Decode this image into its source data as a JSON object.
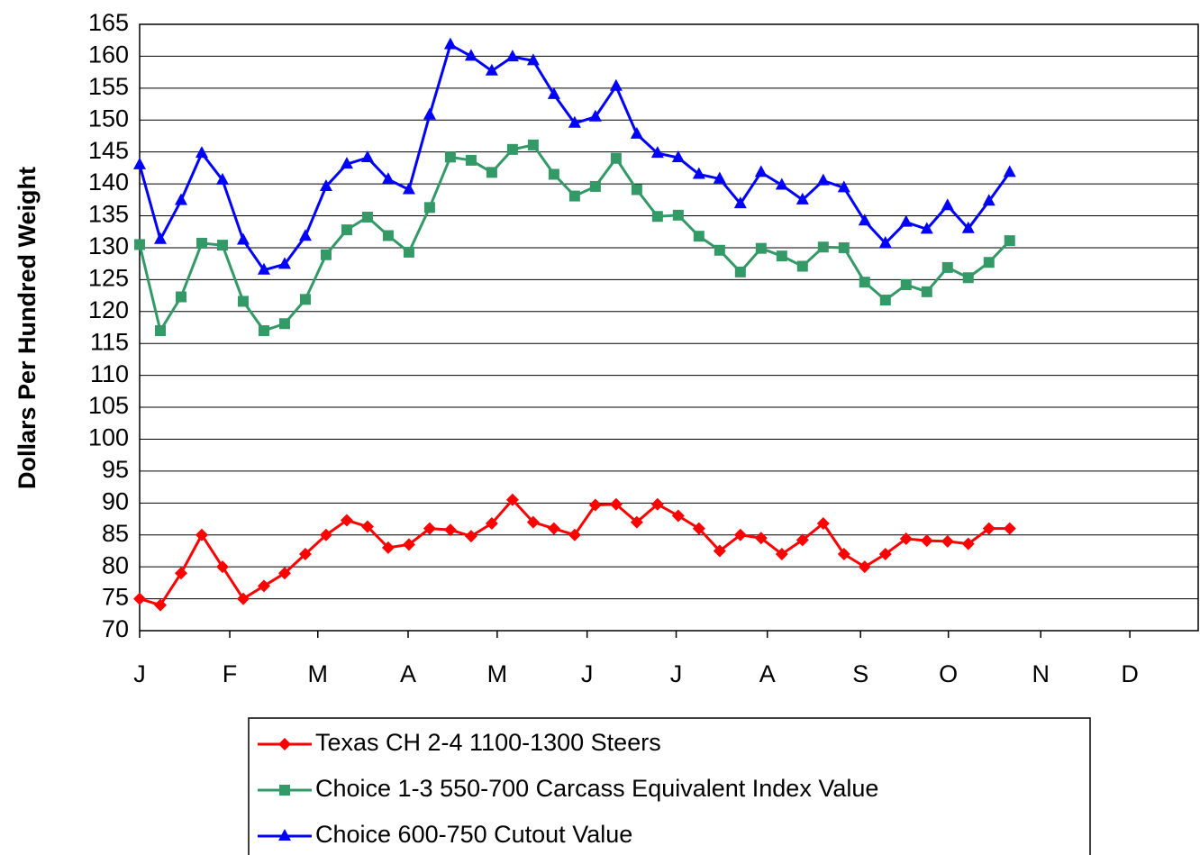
{
  "chart_data": {
    "type": "line",
    "y_label": "Dollars Per Hundred Weight",
    "x": [
      0,
      1,
      2,
      3,
      4,
      5,
      6,
      7,
      8,
      9,
      10,
      11,
      12,
      13,
      14,
      15,
      16,
      17,
      18,
      19,
      20,
      21,
      22,
      23,
      24,
      25,
      26,
      27,
      28,
      29,
      30,
      31,
      32,
      33,
      34,
      35,
      36,
      37,
      38,
      39,
      40,
      41,
      42
    ],
    "xlim": [
      0,
      51.1
    ],
    "xticks": [
      {
        "value": 0,
        "label": "J"
      },
      {
        "value": 4.35,
        "label": "F"
      },
      {
        "value": 8.6,
        "label": "M"
      },
      {
        "value": 12.96,
        "label": "A"
      },
      {
        "value": 17.26,
        "label": "M"
      },
      {
        "value": 21.6,
        "label": "J"
      },
      {
        "value": 25.9,
        "label": "J"
      },
      {
        "value": 30.3,
        "label": "A"
      },
      {
        "value": 34.8,
        "label": "S"
      },
      {
        "value": 39.04,
        "label": "O"
      },
      {
        "value": 43.5,
        "label": "N"
      },
      {
        "value": 47.8,
        "label": "D"
      }
    ],
    "ylim": [
      70,
      165
    ],
    "yticks": [
      70,
      75,
      80,
      85,
      90,
      95,
      100,
      105,
      110,
      115,
      120,
      125,
      130,
      135,
      140,
      145,
      150,
      155,
      160,
      165
    ],
    "grid": true,
    "series": [
      {
        "name": "Texas CH 2-4 1100-1300 Steers",
        "color": "#ff0000",
        "marker": "diamond",
        "values": [
          75,
          74,
          79,
          85,
          80,
          75,
          77,
          79,
          82,
          85,
          87.3,
          86.3,
          83,
          83.5,
          86,
          85.8,
          84.8,
          86.8,
          90.5,
          87,
          86,
          85,
          89.7,
          89.8,
          87,
          89.8,
          88,
          86,
          82.5,
          85,
          84.5,
          82,
          84.2,
          86.8,
          82,
          80,
          82,
          84.4,
          84.1,
          84,
          83.6,
          86,
          86
        ]
      },
      {
        "name": "Choice 1-3 550-700 Carcass Equivalent Index Value",
        "color": "#339966",
        "marker": "square",
        "values": [
          130.5,
          117,
          122.3,
          130.7,
          130.4,
          121.6,
          117,
          118.1,
          121.9,
          128.9,
          132.8,
          134.8,
          131.9,
          129.3,
          136.3,
          144.2,
          143.7,
          141.8,
          145.4,
          146.1,
          141.5,
          138.1,
          139.6,
          144,
          139.1,
          134.9,
          135.1,
          131.8,
          129.6,
          126.2,
          129.9,
          128.7,
          127.1,
          130.1,
          130,
          124.6,
          121.8,
          124.2,
          123.1,
          126.9,
          125.3,
          127.7,
          131.1
        ]
      },
      {
        "name": "Choice 600-750 Cutout Value",
        "color": "#0000ff",
        "marker": "triangle",
        "values": [
          143,
          131.3,
          137.4,
          144.8,
          140.6,
          131.2,
          126.5,
          127.4,
          131.8,
          139.6,
          143.1,
          144.1,
          140.7,
          139.1,
          150.8,
          161.8,
          160,
          157.7,
          159.9,
          159.3,
          154,
          149.5,
          150.5,
          155.3,
          147.8,
          144.8,
          144.1,
          141.5,
          140.8,
          136.9,
          141.8,
          139.8,
          137.5,
          140.5,
          139.4,
          134.2,
          130.7,
          134,
          132.9,
          136.6,
          133,
          137.3,
          141.8
        ]
      }
    ]
  }
}
